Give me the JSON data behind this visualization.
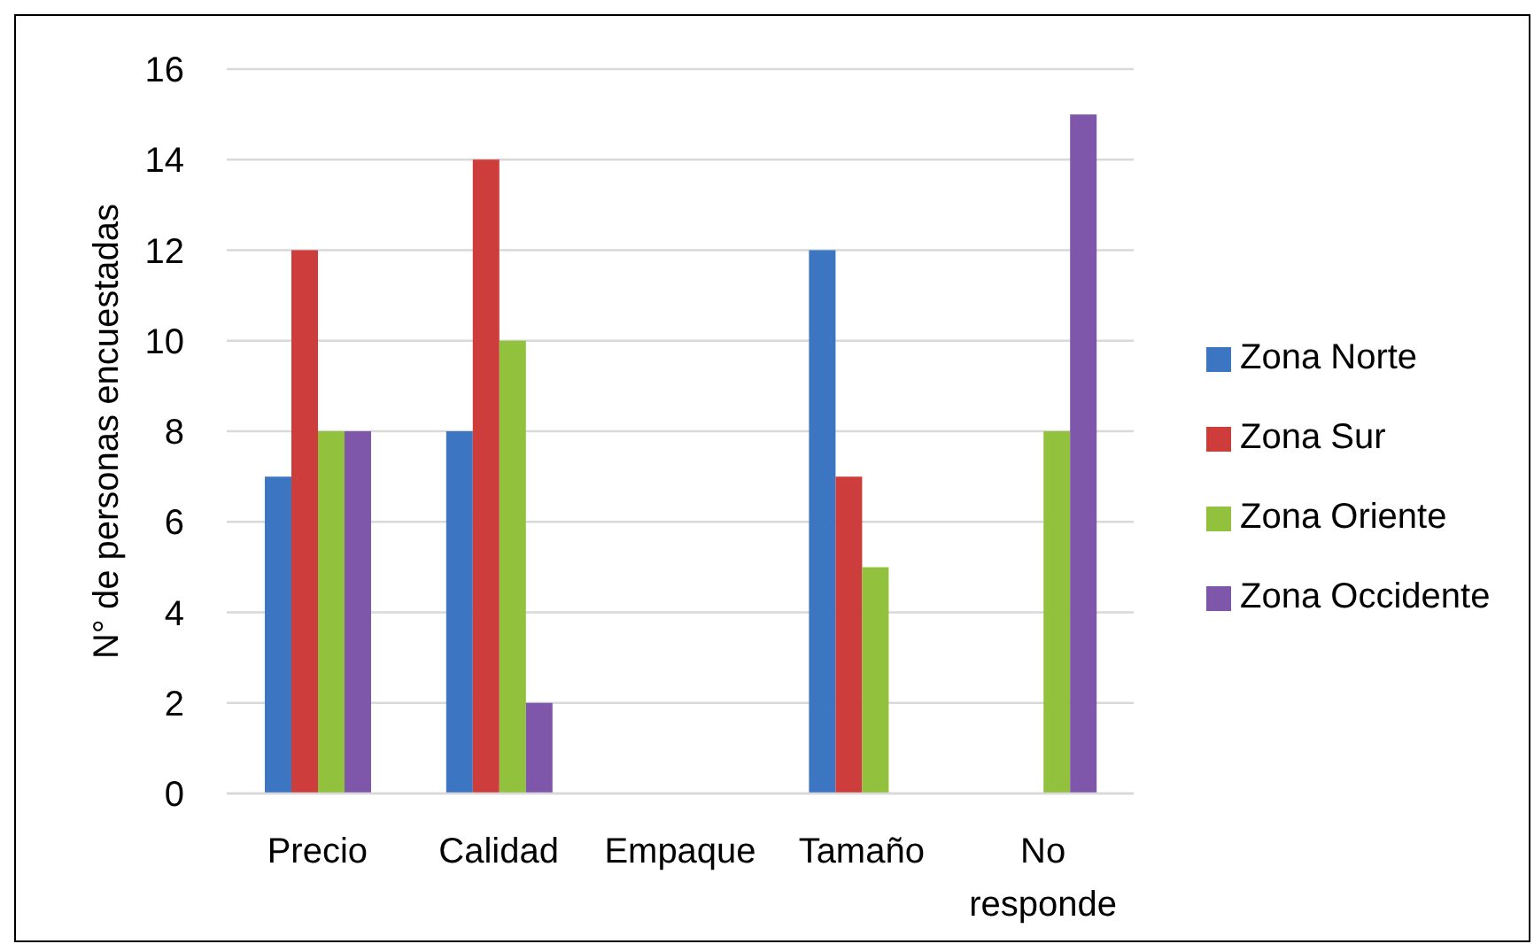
{
  "chart_data": {
    "type": "bar",
    "ylabel": "N° de personas encuestadas",
    "categories": [
      "Precio",
      "Calidad",
      "Empaque",
      "Tamaño",
      "No responde"
    ],
    "series": [
      {
        "name": "Zona Norte",
        "color": "#3c76c2",
        "values": [
          7,
          8,
          0,
          12,
          0
        ]
      },
      {
        "name": "Zona Sur",
        "color": "#cc3d3b",
        "values": [
          12,
          14,
          0,
          7,
          0
        ]
      },
      {
        "name": "Zona Oriente",
        "color": "#92c13e",
        "values": [
          8,
          10,
          0,
          5,
          8
        ]
      },
      {
        "name": "Zona Occidente",
        "color": "#7e57ab",
        "values": [
          8,
          2,
          0,
          0,
          15
        ]
      }
    ],
    "ylim": [
      0,
      16
    ],
    "yticks": [
      0,
      2,
      4,
      6,
      8,
      10,
      12,
      14,
      16
    ],
    "grid": "y",
    "legend": "right"
  }
}
